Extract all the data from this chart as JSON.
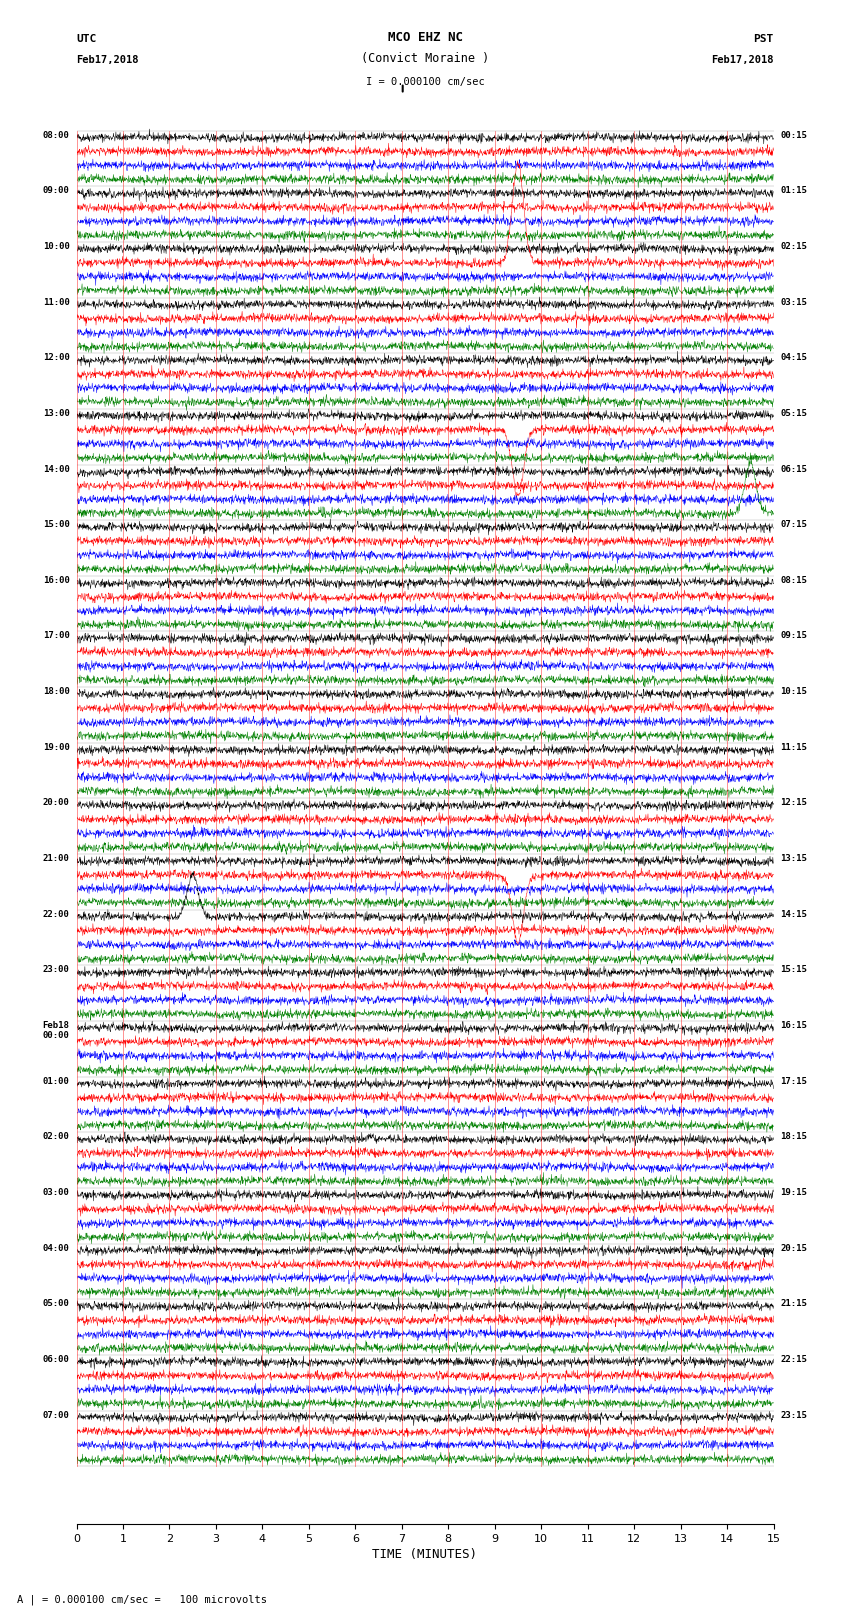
{
  "title_line1": "MCO EHZ NC",
  "title_line2": "(Convict Moraine )",
  "scale_bar_text": "I = 0.000100 cm/sec",
  "utc_label": "UTC",
  "utc_date": "Feb17,2018",
  "pst_label": "PST",
  "pst_date": "Feb17,2018",
  "xlabel": "TIME (MINUTES)",
  "footnote": "A | = 0.000100 cm/sec =   100 microvolts",
  "left_times": [
    "08:00",
    "",
    "",
    "",
    "09:00",
    "",
    "",
    "",
    "10:00",
    "",
    "",
    "",
    "11:00",
    "",
    "",
    "",
    "12:00",
    "",
    "",
    "",
    "13:00",
    "",
    "",
    "",
    "14:00",
    "",
    "",
    "",
    "15:00",
    "",
    "",
    "",
    "16:00",
    "",
    "",
    "",
    "17:00",
    "",
    "",
    "",
    "18:00",
    "",
    "",
    "",
    "19:00",
    "",
    "",
    "",
    "20:00",
    "",
    "",
    "",
    "21:00",
    "",
    "",
    "",
    "22:00",
    "",
    "",
    "",
    "23:00",
    "",
    "",
    "",
    "Feb18\n00:00",
    "",
    "",
    "",
    "01:00",
    "",
    "",
    "",
    "02:00",
    "",
    "",
    "",
    "03:00",
    "",
    "",
    "",
    "04:00",
    "",
    "",
    "",
    "05:00",
    "",
    "",
    "",
    "06:00",
    "",
    "",
    "",
    "07:00",
    "",
    "",
    ""
  ],
  "right_times": [
    "00:15",
    "",
    "",
    "",
    "01:15",
    "",
    "",
    "",
    "02:15",
    "",
    "",
    "",
    "03:15",
    "",
    "",
    "",
    "04:15",
    "",
    "",
    "",
    "05:15",
    "",
    "",
    "",
    "06:15",
    "",
    "",
    "",
    "07:15",
    "",
    "",
    "",
    "08:15",
    "",
    "",
    "",
    "09:15",
    "",
    "",
    "",
    "10:15",
    "",
    "",
    "",
    "11:15",
    "",
    "",
    "",
    "12:15",
    "",
    "",
    "",
    "13:15",
    "",
    "",
    "",
    "14:15",
    "",
    "",
    "",
    "15:15",
    "",
    "",
    "",
    "16:15",
    "",
    "",
    "",
    "17:15",
    "",
    "",
    "",
    "18:15",
    "",
    "",
    "",
    "19:15",
    "",
    "",
    "",
    "20:15",
    "",
    "",
    "",
    "21:15",
    "",
    "",
    "",
    "22:15",
    "",
    "",
    "",
    "23:15",
    "",
    "",
    ""
  ],
  "colors": [
    "black",
    "red",
    "blue",
    "green"
  ],
  "n_rows": 96,
  "x_min": 0,
  "x_max": 15,
  "x_ticks": [
    0,
    1,
    2,
    3,
    4,
    5,
    6,
    7,
    8,
    9,
    10,
    11,
    12,
    13,
    14,
    15
  ],
  "background_color": "white",
  "fig_width": 8.5,
  "fig_height": 16.13,
  "dpi": 100,
  "large_events": [
    [
      3,
      9.0,
      6.0,
      "red"
    ],
    [
      4,
      9.0,
      5.0,
      "red"
    ],
    [
      5,
      9.2,
      4.0,
      "blue"
    ],
    [
      12,
      14.5,
      5.0,
      "green"
    ],
    [
      14,
      0.5,
      4.0,
      "red"
    ],
    [
      27,
      14.5,
      6.0,
      "green"
    ],
    [
      28,
      14.5,
      4.0,
      "blue"
    ],
    [
      32,
      1.5,
      3.0,
      "red"
    ],
    [
      44,
      3.0,
      3.0,
      "green"
    ],
    [
      52,
      9.5,
      8.0,
      "red"
    ],
    [
      53,
      9.5,
      8.0,
      "red"
    ],
    [
      56,
      2.5,
      5.0,
      "black"
    ],
    [
      57,
      2.5,
      7.0,
      "black"
    ],
    [
      58,
      2.3,
      3.0,
      "red"
    ],
    [
      59,
      2.5,
      6.0,
      "black"
    ],
    [
      60,
      9.5,
      4.0,
      "red"
    ],
    [
      61,
      2.0,
      5.0,
      "black"
    ],
    [
      62,
      2.0,
      4.0,
      "black"
    ],
    [
      8,
      9.5,
      12.0,
      "red"
    ],
    [
      9,
      9.5,
      12.0,
      "red"
    ],
    [
      10,
      9.5,
      10.0,
      "red"
    ],
    [
      21,
      9.5,
      8.0,
      "red"
    ],
    [
      22,
      9.5,
      8.0,
      "red"
    ],
    [
      76,
      14.0,
      5.0,
      "green"
    ],
    [
      77,
      14.0,
      5.0,
      "green"
    ]
  ]
}
